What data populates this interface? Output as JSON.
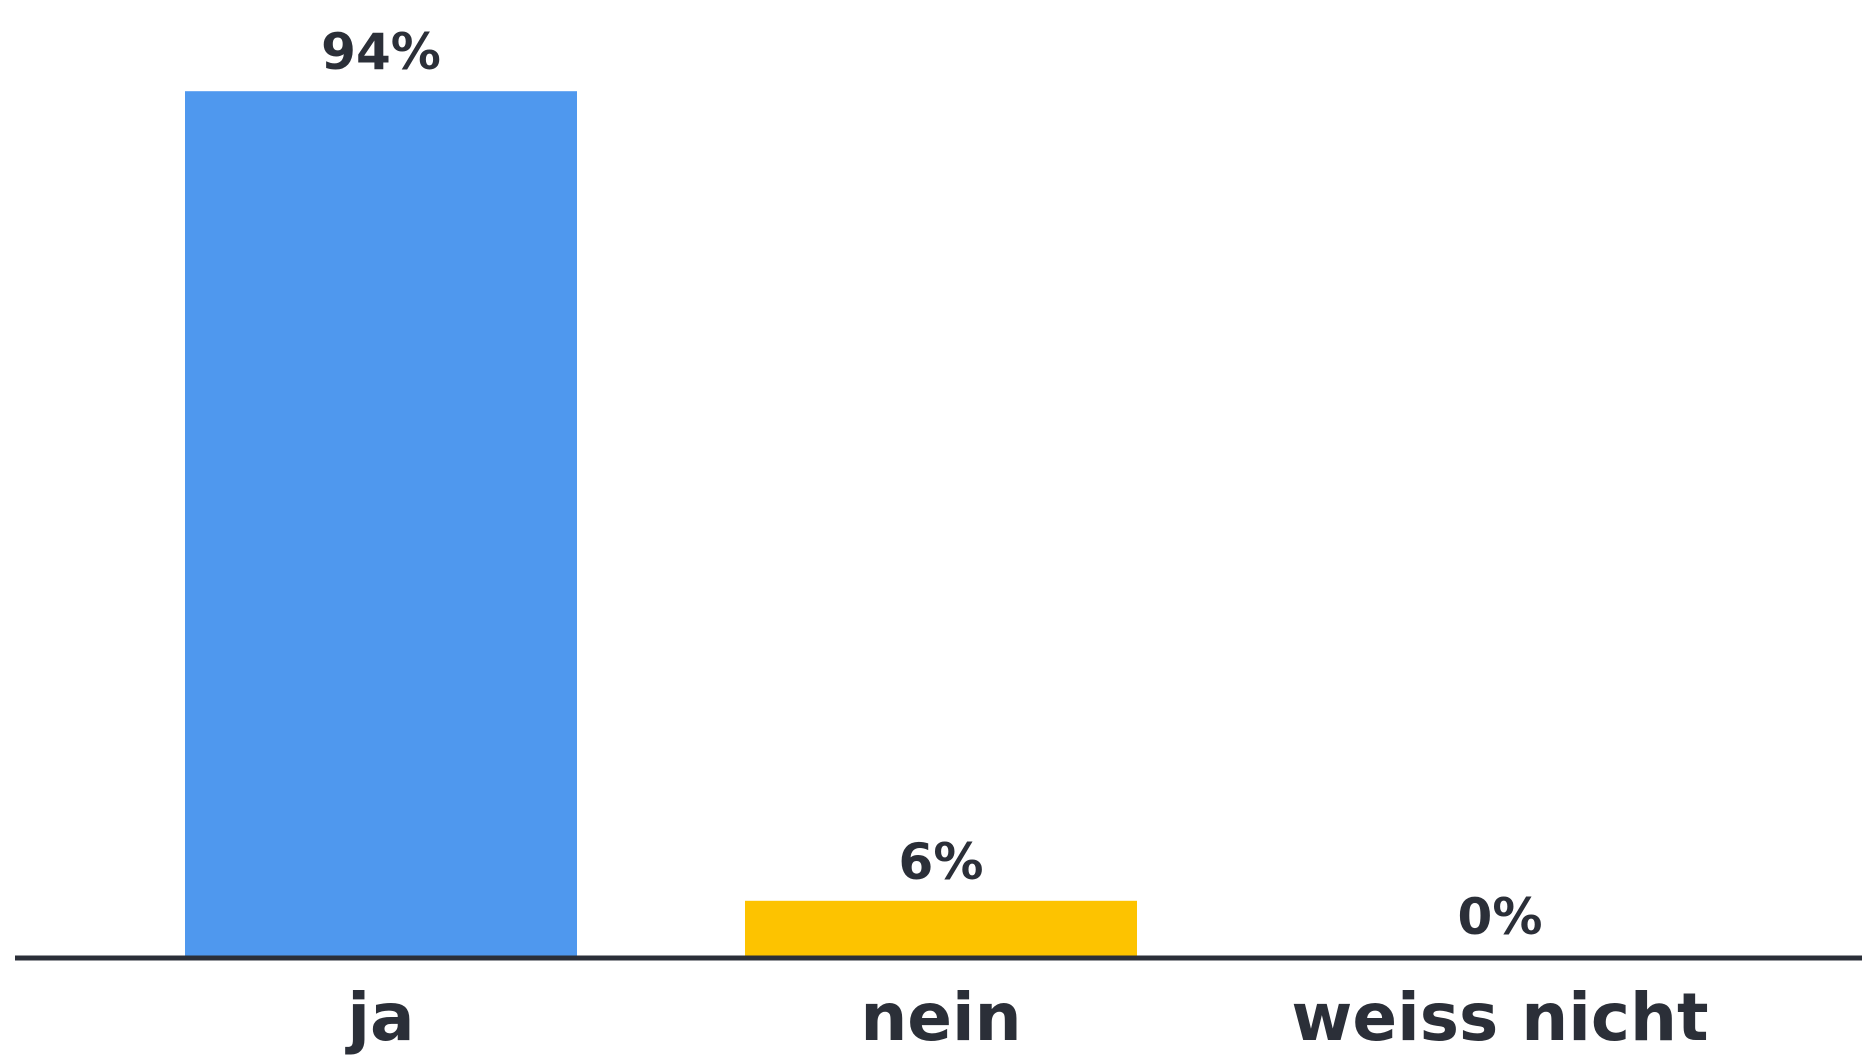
{
  "chart_data": {
    "type": "bar",
    "categories": [
      "ja",
      "nein",
      "weiss nicht"
    ],
    "values": [
      94,
      6,
      0
    ],
    "value_labels": [
      "94%",
      "6%",
      "0%"
    ],
    "colors": [
      "#4f98ee",
      "#fdc300",
      "#4f98ee"
    ],
    "axis_color": "#2b2f38",
    "ylim": [
      0,
      100
    ],
    "grid": false
  }
}
